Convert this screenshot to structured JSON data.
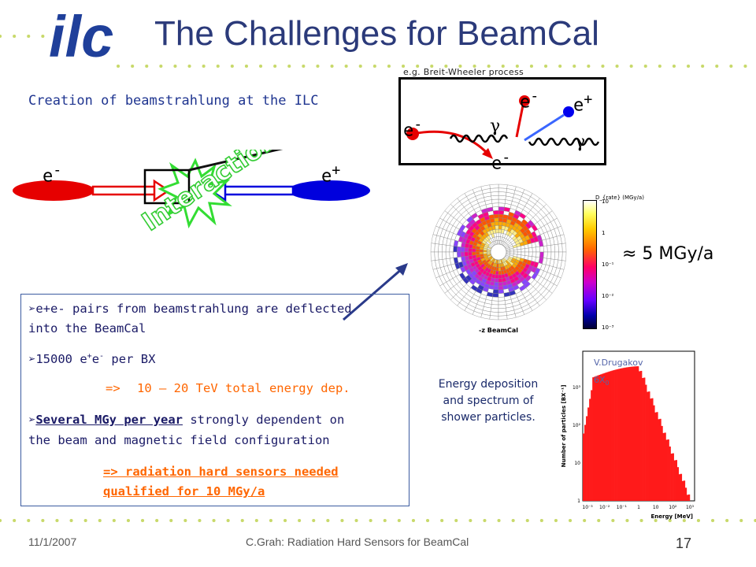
{
  "slide": {
    "title": "The Challenges for BeamCal",
    "subtitle": "Creation of beamstrahlung at the ILC",
    "logo_text": "ilc",
    "interaction_label": "Interaction",
    "approx_dose": "≈ 5 MGy/a"
  },
  "collision": {
    "left_particle": "e-",
    "right_particle": "e+"
  },
  "breit_wheeler": {
    "caption": "e.g. Breit-Wheeler process",
    "labels": [
      "e-",
      "e-",
      "e+",
      "γ",
      "γ",
      "e-"
    ]
  },
  "info_box": {
    "items": [
      {
        "text": "e+e- pairs from beamstrahlung are deflected",
        "text2": "into the BeamCal"
      },
      {
        "prefix": "15000 e",
        "sup1": "+",
        "mid": "e",
        "sup2": "-",
        "suffix": " per BX"
      },
      {
        "arrow": "=>",
        "text": "10 – 20 TeV total energy dep."
      },
      {
        "underlined": "Several MGy per year",
        "rest": " strongly dependent on",
        "text2": "the beam and magnetic field configuration"
      },
      {
        "line1": "=> radiation hard sensors needed",
        "line2": "qualified for 10 MGy/a"
      }
    ]
  },
  "energy_caption": [
    "Energy deposition",
    "and spectrum of",
    "shower particles."
  ],
  "beamcal_map": {
    "label": "-z BeamCal",
    "colorbar_title": "D_{rate} (MGy/a)",
    "colorbar_ticks": [
      "10",
      "1",
      "10⁻¹",
      "10⁻²",
      "10⁻³"
    ]
  },
  "spectrum": {
    "author": "V.Drugakov",
    "depth": "6X0",
    "xlabel": "Energy [MeV]",
    "ylabel": "Number of particles [BX⁻¹]",
    "xticks": [
      "10⁻³",
      "10⁻²",
      "10⁻¹",
      "1",
      "10",
      "10²",
      "10³"
    ],
    "yticks": [
      "10³",
      "10²",
      "10",
      "1"
    ]
  },
  "footer": {
    "date": "11/1/2007",
    "center": "C.Grah: Radiation Hard Sensors for BeamCal",
    "page": "17"
  },
  "colors": {
    "title": "#2b3a7a",
    "text": "#1f3590",
    "orange": "#ff6600",
    "green": "#33cc33",
    "red": "#e60000",
    "blue": "#0000dd"
  }
}
